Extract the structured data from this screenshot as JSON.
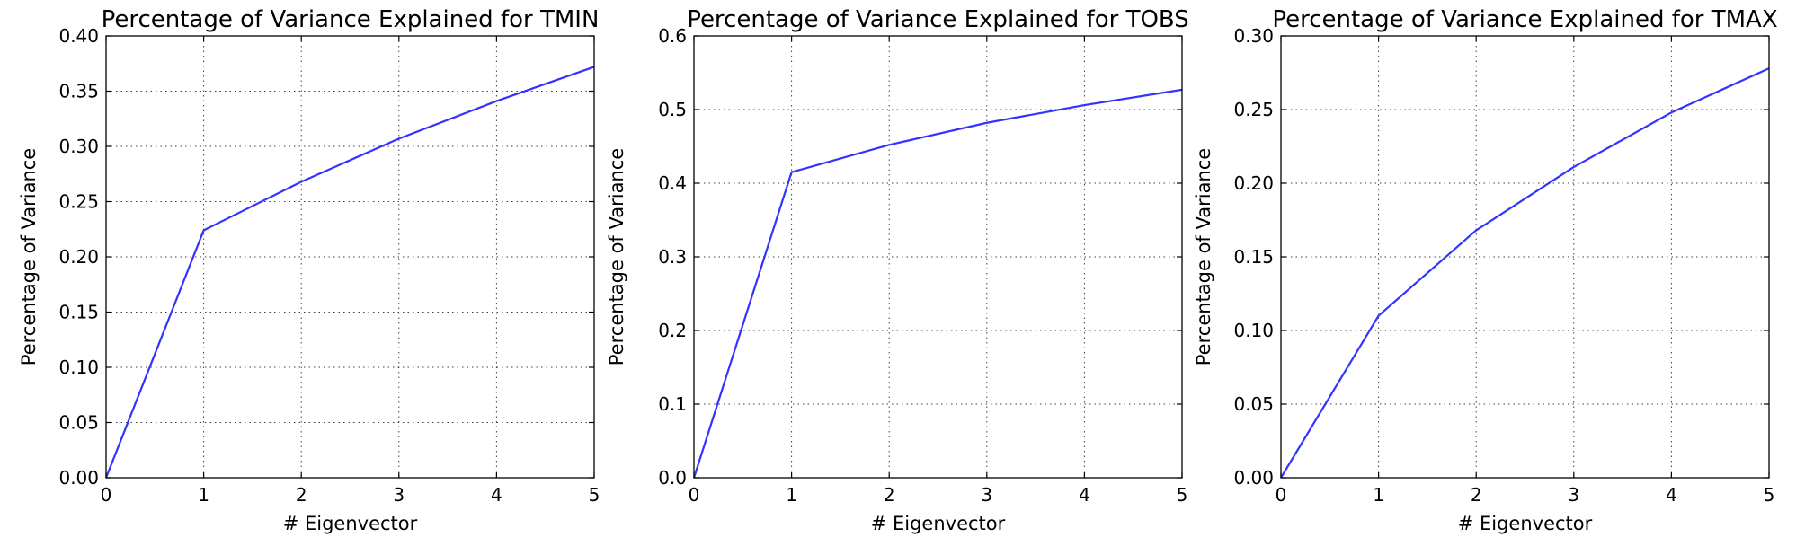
{
  "line_color": "#3333ff",
  "chart_data": [
    {
      "type": "line",
      "title": "Percentage of Variance Explained for TMIN",
      "xlabel": "# Eigenvector",
      "ylabel": "Percentage of Variance",
      "x": [
        0,
        1,
        2,
        3,
        4,
        5
      ],
      "series": [
        {
          "values": [
            0.0,
            0.224,
            0.268,
            0.307,
            0.341,
            0.372
          ]
        }
      ],
      "xlim": [
        0,
        5
      ],
      "ylim": [
        0,
        0.4
      ],
      "xticks": [
        "0",
        "1",
        "2",
        "3",
        "4",
        "5"
      ],
      "yticks": [
        "0.00",
        "0.05",
        "0.10",
        "0.15",
        "0.20",
        "0.25",
        "0.30",
        "0.35",
        "0.40"
      ],
      "grid": true
    },
    {
      "type": "line",
      "title": "Percentage of Variance Explained for TOBS",
      "xlabel": "# Eigenvector",
      "ylabel": "Percentage of Variance",
      "x": [
        0,
        1,
        2,
        3,
        4,
        5
      ],
      "series": [
        {
          "values": [
            0.0,
            0.415,
            0.452,
            0.482,
            0.506,
            0.527
          ]
        }
      ],
      "xlim": [
        0,
        5
      ],
      "ylim": [
        0,
        0.6
      ],
      "xticks": [
        "0",
        "1",
        "2",
        "3",
        "4",
        "5"
      ],
      "yticks": [
        "0.0",
        "0.1",
        "0.2",
        "0.3",
        "0.4",
        "0.5",
        "0.6"
      ],
      "grid": true
    },
    {
      "type": "line",
      "title": "Percentage of Variance Explained for TMAX",
      "xlabel": "# Eigenvector",
      "ylabel": "Percentage of Variance",
      "x": [
        0,
        1,
        2,
        3,
        4,
        5
      ],
      "series": [
        {
          "values": [
            0.0,
            0.11,
            0.168,
            0.211,
            0.248,
            0.278
          ]
        }
      ],
      "xlim": [
        0,
        5
      ],
      "ylim": [
        0,
        0.3
      ],
      "xticks": [
        "0",
        "1",
        "2",
        "3",
        "4",
        "5"
      ],
      "yticks": [
        "0.00",
        "0.05",
        "0.10",
        "0.15",
        "0.20",
        "0.25",
        "0.30"
      ],
      "grid": true
    }
  ]
}
